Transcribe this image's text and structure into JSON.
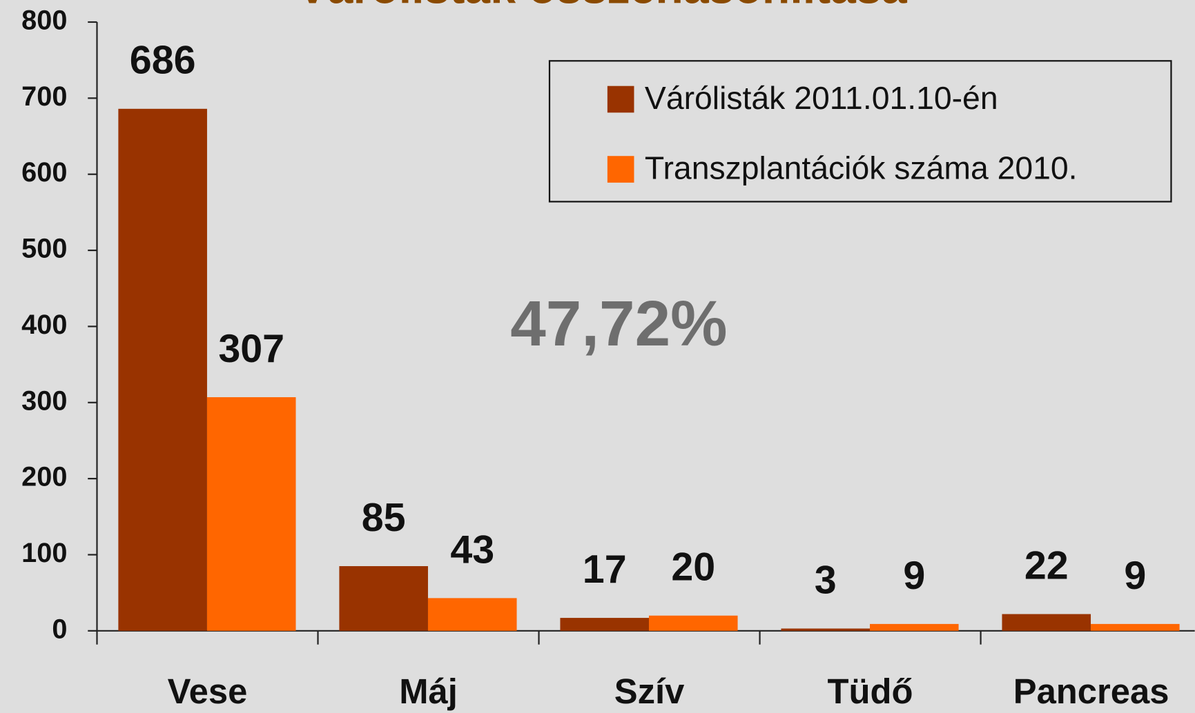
{
  "chart_data": {
    "type": "bar",
    "title": "Várólisták összehasonlítása",
    "annotation": "47,72%",
    "categories": [
      "Vese",
      "Máj",
      "Szív",
      "Tüdő",
      "Pancreas"
    ],
    "series": [
      {
        "name": "Várólisták 2011.01.10-én",
        "color": "#993300",
        "values": [
          686,
          85,
          17,
          3,
          22
        ]
      },
      {
        "name": "Transzplantációk száma 2010.",
        "color": "#ff6600",
        "values": [
          307,
          43,
          20,
          9,
          9
        ]
      }
    ],
    "ylim": [
      0,
      800
    ],
    "yticks": [
      0,
      100,
      200,
      300,
      400,
      500,
      600,
      700,
      800
    ],
    "legend": "upper right"
  }
}
